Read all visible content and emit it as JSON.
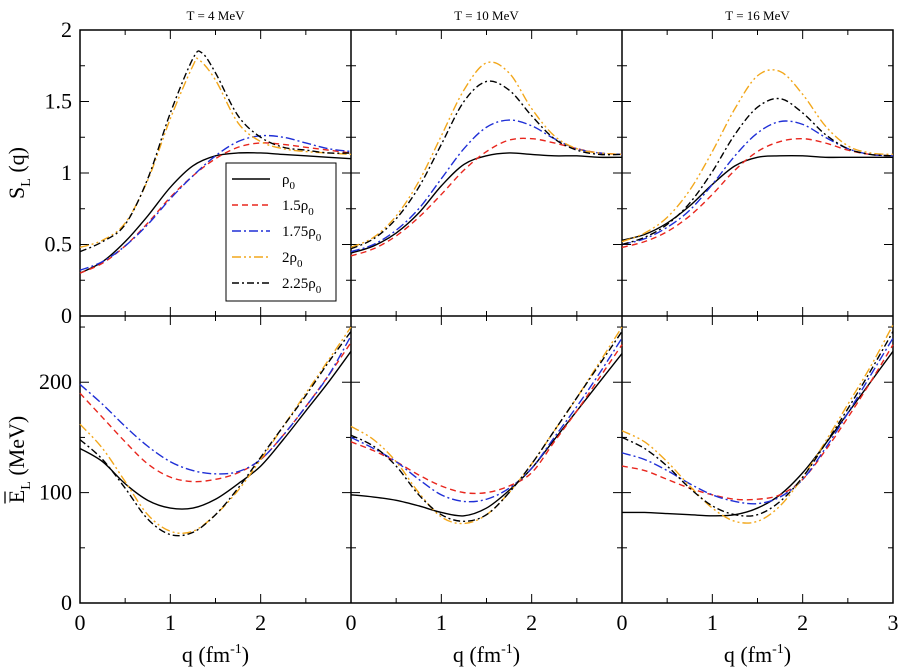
{
  "chart_data": {
    "type": "line",
    "panel_titles": [
      "T = 4 MeV",
      "T = 10 MeV",
      "T = 16 MeV"
    ],
    "top_ylabel": {
      "main": "S",
      "sub": "L",
      "rest": " (q)"
    },
    "bottom_ylabel": {
      "main": "E",
      "sub": "L",
      "rest": " (MeV)"
    },
    "xlabel": {
      "main": "q (fm",
      "sup": "-1",
      "rest": ")"
    },
    "xlim": [
      0,
      3
    ],
    "top_ylim": [
      0,
      2
    ],
    "bottom_ylim": [
      0,
      260
    ],
    "x_ticks": [
      "0",
      "1",
      "2",
      "3"
    ],
    "top_y_ticks": [
      "0",
      "0.5",
      "1",
      "1.5",
      "2"
    ],
    "bottom_y_ticks": [
      "0",
      "100",
      "200"
    ],
    "legend": [
      {
        "name": "ρ",
        "sub": "0",
        "prefix": "",
        "color": "#000000",
        "dash": ""
      },
      {
        "name": "ρ",
        "sub": "0",
        "prefix": "1.5",
        "color": "#e8261d",
        "dash": "6,4"
      },
      {
        "name": "ρ",
        "sub": "0",
        "prefix": "1.75",
        "color": "#1f2fd6",
        "dash": "9,3,2,3"
      },
      {
        "name": "ρ",
        "sub": "0",
        "prefix": "2",
        "color": "#f2a71b",
        "dash": "9,3,2,3,2,3"
      },
      {
        "name": "ρ",
        "sub": "0",
        "prefix": "2.25",
        "color": "#000000",
        "dash": "7,3,2,3"
      }
    ],
    "series_names": [
      "ρ0",
      "1.5ρ0",
      "1.75ρ0",
      "2ρ0",
      "2.25ρ0"
    ],
    "x": [
      0,
      0.25,
      0.5,
      0.75,
      1.0,
      1.25,
      1.5,
      1.75,
      2.0,
      2.25,
      2.5,
      2.75,
      3.0
    ],
    "top": [
      [
        [
          0.3,
          0.38,
          0.52,
          0.7,
          0.9,
          1.05,
          1.12,
          1.14,
          1.14,
          1.13,
          1.12,
          1.11,
          1.1
        ],
        [
          0.3,
          0.37,
          0.49,
          0.65,
          0.83,
          0.98,
          1.1,
          1.18,
          1.21,
          1.2,
          1.18,
          1.16,
          1.14
        ],
        [
          0.32,
          0.38,
          0.49,
          0.64,
          0.82,
          0.98,
          1.12,
          1.22,
          1.26,
          1.25,
          1.21,
          1.17,
          1.15
        ],
        null,
        null
      ],
      [
        [
          0.44,
          0.49,
          0.58,
          0.72,
          0.91,
          1.06,
          1.12,
          1.14,
          1.13,
          1.12,
          1.12,
          1.11,
          1.11
        ],
        [
          0.42,
          0.47,
          0.56,
          0.69,
          0.85,
          1.02,
          1.15,
          1.23,
          1.24,
          1.21,
          1.17,
          1.14,
          1.13
        ],
        [
          0.45,
          0.5,
          0.6,
          0.75,
          0.96,
          1.17,
          1.32,
          1.37,
          1.33,
          1.24,
          1.17,
          1.14,
          1.13
        ],
        [
          0.48,
          0.55,
          0.7,
          0.94,
          1.26,
          1.58,
          1.77,
          1.7,
          1.45,
          1.26,
          1.17,
          1.14,
          1.13
        ],
        [
          0.47,
          0.54,
          0.68,
          0.9,
          1.2,
          1.5,
          1.64,
          1.58,
          1.4,
          1.24,
          1.16,
          1.13,
          1.13
        ]
      ],
      [
        [
          0.53,
          0.57,
          0.65,
          0.77,
          0.92,
          1.05,
          1.11,
          1.12,
          1.12,
          1.11,
          1.11,
          1.11,
          1.11
        ],
        [
          0.48,
          0.52,
          0.59,
          0.7,
          0.85,
          1.02,
          1.15,
          1.22,
          1.24,
          1.21,
          1.16,
          1.13,
          1.12
        ],
        [
          0.5,
          0.54,
          0.62,
          0.74,
          0.92,
          1.12,
          1.28,
          1.36,
          1.34,
          1.25,
          1.17,
          1.13,
          1.12
        ],
        [
          0.52,
          0.58,
          0.69,
          0.88,
          1.15,
          1.45,
          1.68,
          1.71,
          1.55,
          1.33,
          1.19,
          1.14,
          1.13
        ],
        [
          0.5,
          0.55,
          0.64,
          0.79,
          1.01,
          1.27,
          1.46,
          1.52,
          1.42,
          1.27,
          1.17,
          1.13,
          1.12
        ]
      ]
    ],
    "top_extra_first_panel": [
      {
        "color": "#f2a71b",
        "dash": "9,3,2,3,2,3",
        "points": [
          [
            0,
            0.48
          ],
          [
            0.25,
            0.53
          ],
          [
            0.5,
            0.65
          ],
          [
            0.75,
            0.95
          ],
          [
            1.0,
            1.38
          ],
          [
            1.25,
            1.75
          ],
          [
            1.32,
            1.79
          ],
          [
            1.5,
            1.65
          ],
          [
            1.75,
            1.35
          ],
          [
            2.0,
            1.22
          ],
          [
            2.25,
            1.17
          ],
          [
            2.5,
            1.15
          ],
          [
            2.75,
            1.14
          ],
          [
            3.0,
            1.13
          ]
        ]
      },
      {
        "color": "#000000",
        "dash": "7,3,2,3",
        "points": [
          [
            0,
            0.45
          ],
          [
            0.25,
            0.52
          ],
          [
            0.5,
            0.64
          ],
          [
            0.75,
            0.96
          ],
          [
            1.0,
            1.42
          ],
          [
            1.25,
            1.8
          ],
          [
            1.35,
            1.84
          ],
          [
            1.5,
            1.7
          ],
          [
            1.75,
            1.4
          ],
          [
            2.0,
            1.25
          ],
          [
            2.25,
            1.18
          ],
          [
            2.5,
            1.16
          ],
          [
            2.75,
            1.14
          ],
          [
            3.0,
            1.14
          ]
        ]
      }
    ],
    "bottom": [
      [
        [
          140,
          128,
          108,
          93,
          86,
          86,
          94,
          108,
          124,
          148,
          174,
          200,
          228
        ],
        [
          190,
          168,
          146,
          126,
          114,
          110,
          112,
          118,
          130,
          152,
          178,
          206,
          236
        ],
        [
          198,
          180,
          160,
          142,
          128,
          120,
          117,
          119,
          130,
          152,
          178,
          206,
          242
        ],
        [
          162,
          140,
          110,
          80,
          65,
          65,
          80,
          102,
          130,
          160,
          190,
          220,
          250
        ],
        [
          148,
          130,
          104,
          76,
          62,
          64,
          80,
          104,
          132,
          160,
          188,
          218,
          246
        ]
      ],
      [
        [
          98,
          96,
          93,
          88,
          82,
          79,
          86,
          102,
          122,
          148,
          174,
          200,
          226
        ],
        [
          146,
          138,
          128,
          116,
          106,
          100,
          100,
          106,
          118,
          146,
          174,
          204,
          234
        ],
        [
          150,
          140,
          128,
          112,
          98,
          92,
          94,
          104,
          122,
          150,
          178,
          208,
          240
        ],
        [
          160,
          148,
          128,
          100,
          78,
          72,
          80,
          100,
          126,
          156,
          186,
          218,
          250
        ],
        [
          152,
          142,
          124,
          98,
          80,
          74,
          80,
          100,
          126,
          156,
          186,
          216,
          246
        ]
      ],
      [
        [
          82,
          82,
          81,
          80,
          79,
          80,
          86,
          98,
          118,
          144,
          172,
          200,
          228
        ],
        [
          124,
          120,
          112,
          104,
          98,
          94,
          94,
          98,
          112,
          138,
          168,
          200,
          234
        ],
        [
          136,
          130,
          120,
          108,
          98,
          92,
          90,
          96,
          112,
          140,
          172,
          206,
          240
        ],
        [
          156,
          146,
          128,
          106,
          86,
          74,
          74,
          88,
          114,
          146,
          180,
          214,
          252
        ],
        [
          150,
          140,
          124,
          104,
          88,
          80,
          80,
          92,
          114,
          144,
          176,
          210,
          246
        ]
      ]
    ]
  }
}
